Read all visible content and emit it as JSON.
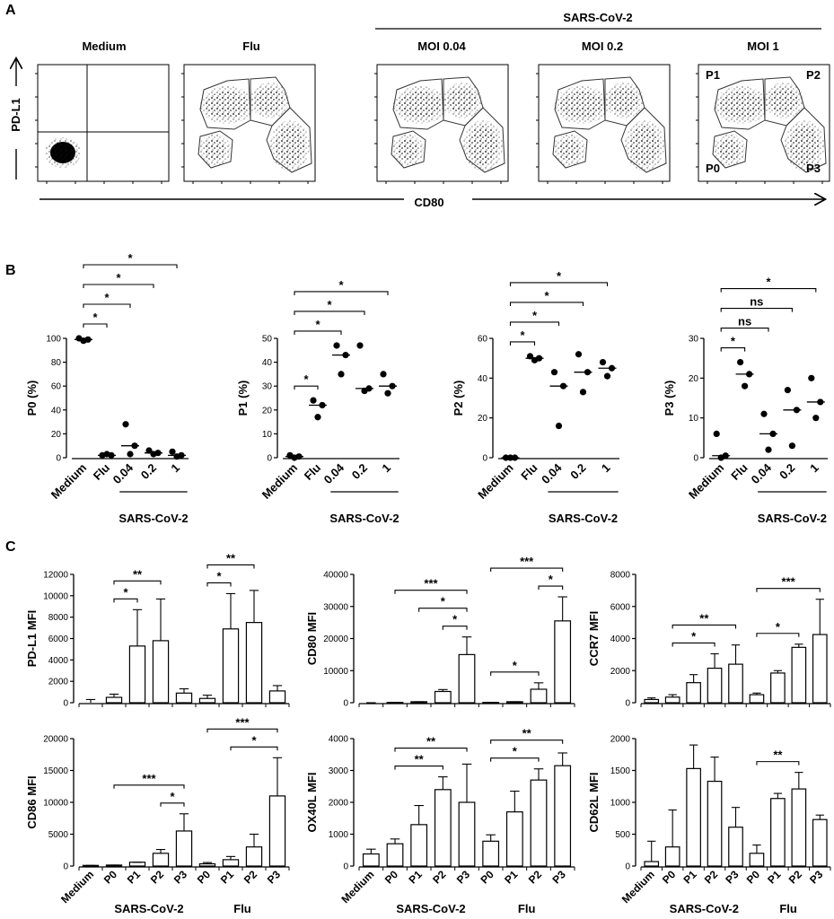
{
  "panel_labels": [
    "A",
    "B",
    "C"
  ],
  "flow": {
    "group_label": "SARS-CoV-2",
    "y_axis": "PD-L1",
    "x_axis": "CD80",
    "plots": [
      "Medium",
      "Flu",
      "MOI 0.04",
      "MOI 0.2",
      "MOI 1"
    ],
    "gate_labels": [
      "P1",
      "P2",
      "P0",
      "P3"
    ]
  },
  "chart_data": [
    {
      "type": "dot",
      "ylabel": "P0 (%)",
      "ylim": [
        0,
        100
      ],
      "yticks": [
        0,
        20,
        40,
        60,
        80,
        100
      ],
      "categories": [
        "Medium",
        "Flu",
        "0.04",
        "0.2",
        "1"
      ],
      "group_label": "SARS-CoV-2",
      "points": [
        [
          100,
          99,
          98
        ],
        [
          2,
          2,
          3
        ],
        [
          28,
          10,
          3
        ],
        [
          6,
          4,
          3
        ],
        [
          5,
          2,
          1
        ]
      ],
      "medians": [
        99,
        2,
        10,
        4,
        2
      ],
      "brackets": [
        {
          "from": 0,
          "to": 1,
          "label": "*"
        },
        {
          "from": 0,
          "to": 2,
          "label": "*"
        },
        {
          "from": 0,
          "to": 3,
          "label": "*"
        },
        {
          "from": 0,
          "to": 4,
          "label": "*"
        }
      ]
    },
    {
      "type": "dot",
      "ylabel": "P1 (%)",
      "ylim": [
        0,
        50
      ],
      "yticks": [
        0,
        10,
        20,
        30,
        40,
        50
      ],
      "categories": [
        "Medium",
        "Flu",
        "0.04",
        "0.2",
        "1"
      ],
      "group_label": "SARS-CoV-2",
      "points": [
        [
          1,
          0.5,
          0
        ],
        [
          24,
          22,
          17
        ],
        [
          47,
          43,
          35
        ],
        [
          47,
          29,
          28
        ],
        [
          35,
          30,
          27
        ]
      ],
      "medians": [
        0.5,
        22,
        43,
        29,
        30
      ],
      "brackets": [
        {
          "from": 0,
          "to": 1,
          "label": "*"
        },
        {
          "from": 0,
          "to": 2,
          "label": "*"
        },
        {
          "from": 0,
          "to": 3,
          "label": "*"
        },
        {
          "from": 0,
          "to": 4,
          "label": "*"
        }
      ]
    },
    {
      "type": "dot",
      "ylabel": "P2 (%)",
      "ylim": [
        0,
        60
      ],
      "yticks": [
        0,
        20,
        40,
        60
      ],
      "categories": [
        "Medium",
        "Flu",
        "0.04",
        "0.2",
        "1"
      ],
      "group_label": "SARS-CoV-2",
      "points": [
        [
          0,
          0,
          0
        ],
        [
          51,
          50,
          49
        ],
        [
          43,
          36,
          16
        ],
        [
          52,
          43,
          33
        ],
        [
          48,
          45,
          41
        ]
      ],
      "medians": [
        0,
        50,
        36,
        43,
        45
      ],
      "brackets": [
        {
          "from": 0,
          "to": 1,
          "label": "*"
        },
        {
          "from": 0,
          "to": 2,
          "label": "*"
        },
        {
          "from": 0,
          "to": 3,
          "label": "*"
        },
        {
          "from": 0,
          "to": 4,
          "label": "*"
        }
      ]
    },
    {
      "type": "dot",
      "ylabel": "P3  (%)",
      "ylim": [
        0,
        30
      ],
      "yticks": [
        0,
        10,
        20,
        30
      ],
      "categories": [
        "Medium",
        "Flu",
        "0.04",
        "0.2",
        "1"
      ],
      "group_label": "SARS-CoV-2",
      "points": [
        [
          6,
          0.5,
          0
        ],
        [
          24,
          21,
          18
        ],
        [
          11,
          6,
          2
        ],
        [
          17,
          12,
          3
        ],
        [
          20,
          14,
          10
        ]
      ],
      "medians": [
        0.5,
        21,
        6,
        12,
        14
      ],
      "brackets": [
        {
          "from": 0,
          "to": 1,
          "label": "*"
        },
        {
          "from": 0,
          "to": 2,
          "label": "ns"
        },
        {
          "from": 0,
          "to": 3,
          "label": "ns"
        },
        {
          "from": 0,
          "to": 4,
          "label": "*"
        }
      ]
    },
    {
      "type": "bar",
      "ylabel": "PD-L1 MFI",
      "ylim": [
        0,
        12000
      ],
      "yticks": [
        0,
        2000,
        4000,
        6000,
        8000,
        10000,
        12000
      ],
      "values": [
        0,
        500,
        5300,
        5800,
        900,
        400,
        6900,
        7500,
        1100
      ],
      "errors": [
        300,
        300,
        3400,
        3900,
        400,
        300,
        3300,
        3000,
        500
      ],
      "brackets": [
        {
          "from": 1,
          "to": 2,
          "label": "*"
        },
        {
          "from": 1,
          "to": 3,
          "label": "**"
        },
        {
          "from": 5,
          "to": 6,
          "label": "*"
        },
        {
          "from": 5,
          "to": 7,
          "label": "**"
        }
      ]
    },
    {
      "type": "bar",
      "ylabel": "CD80 MFI",
      "ylim": [
        0,
        40000
      ],
      "yticks": [
        0,
        10000,
        20000,
        30000,
        40000
      ],
      "values": [
        0,
        100,
        300,
        3500,
        15000,
        100,
        300,
        4200,
        25500
      ],
      "errors": [
        0,
        0,
        0,
        600,
        5500,
        0,
        0,
        2000,
        7500
      ],
      "brackets": [
        {
          "from": 3,
          "to": 4,
          "label": "*"
        },
        {
          "from": 2,
          "to": 4,
          "label": "*"
        },
        {
          "from": 1,
          "to": 4,
          "label": "***"
        },
        {
          "from": 5,
          "to": 7,
          "label": "*"
        },
        {
          "from": 7,
          "to": 8,
          "label": "*"
        },
        {
          "from": 5,
          "to": 8,
          "label": "***"
        }
      ]
    },
    {
      "type": "bar",
      "ylabel": "CCR7 MFI",
      "ylim": [
        0,
        8000
      ],
      "yticks": [
        0,
        2000,
        4000,
        6000,
        8000
      ],
      "values": [
        200,
        350,
        1250,
        2150,
        2400,
        500,
        1850,
        3450,
        4250
      ],
      "errors": [
        100,
        150,
        500,
        900,
        1200,
        100,
        150,
        200,
        2200
      ],
      "brackets": [
        {
          "from": 1,
          "to": 3,
          "label": "*"
        },
        {
          "from": 1,
          "to": 4,
          "label": "**"
        },
        {
          "from": 5,
          "to": 7,
          "label": "*"
        },
        {
          "from": 5,
          "to": 8,
          "label": "***"
        }
      ]
    },
    {
      "type": "bar",
      "ylabel": "CD86 MFI",
      "ylim": [
        0,
        20000
      ],
      "yticks": [
        0,
        5000,
        10000,
        15000,
        20000
      ],
      "categories": [
        "Medium",
        "P0",
        "P1",
        "P2",
        "P3",
        "P0",
        "P1",
        "P2",
        "P3"
      ],
      "group_labels": [
        "SARS-CoV-2",
        "Flu"
      ],
      "values": [
        100,
        150,
        600,
        2000,
        5500,
        350,
        1000,
        3000,
        11000
      ],
      "errors": [
        0,
        0,
        0,
        600,
        2700,
        200,
        500,
        2000,
        6000
      ],
      "brackets": [
        {
          "from": 3,
          "to": 4,
          "label": "*"
        },
        {
          "from": 1,
          "to": 4,
          "label": "***"
        },
        {
          "from": 6,
          "to": 8,
          "label": "*"
        },
        {
          "from": 5,
          "to": 8,
          "label": "***"
        }
      ]
    },
    {
      "type": "bar",
      "ylabel": "OX40L MFI",
      "ylim": [
        0,
        4000
      ],
      "yticks": [
        0,
        1000,
        2000,
        3000,
        4000
      ],
      "categories": [
        "Medium",
        "P0",
        "P1",
        "P2",
        "P3",
        "P0",
        "P1",
        "P2",
        "P3"
      ],
      "group_labels": [
        "SARS-CoV-2",
        "Flu"
      ],
      "values": [
        380,
        700,
        1300,
        2400,
        2000,
        780,
        1700,
        2700,
        3150
      ],
      "errors": [
        150,
        150,
        600,
        400,
        1200,
        200,
        650,
        350,
        400
      ],
      "brackets": [
        {
          "from": 1,
          "to": 3,
          "label": "**"
        },
        {
          "from": 1,
          "to": 4,
          "label": "**"
        },
        {
          "from": 5,
          "to": 7,
          "label": "*"
        },
        {
          "from": 5,
          "to": 8,
          "label": "**"
        }
      ]
    },
    {
      "type": "bar",
      "ylabel": "CD62L MFI",
      "ylim": [
        0,
        2000
      ],
      "yticks": [
        0,
        500,
        1000,
        1500,
        2000
      ],
      "categories": [
        "Medium",
        "P0",
        "P1",
        "P2",
        "P3",
        "P0",
        "P1",
        "P2",
        "P3"
      ],
      "group_labels": [
        "SARS-CoV-2",
        "Flu"
      ],
      "values": [
        70,
        300,
        1530,
        1330,
        610,
        200,
        1060,
        1210,
        730
      ],
      "errors": [
        320,
        580,
        370,
        380,
        310,
        130,
        80,
        260,
        70
      ],
      "brackets": [
        {
          "from": 5,
          "to": 7,
          "label": "**"
        }
      ]
    }
  ]
}
